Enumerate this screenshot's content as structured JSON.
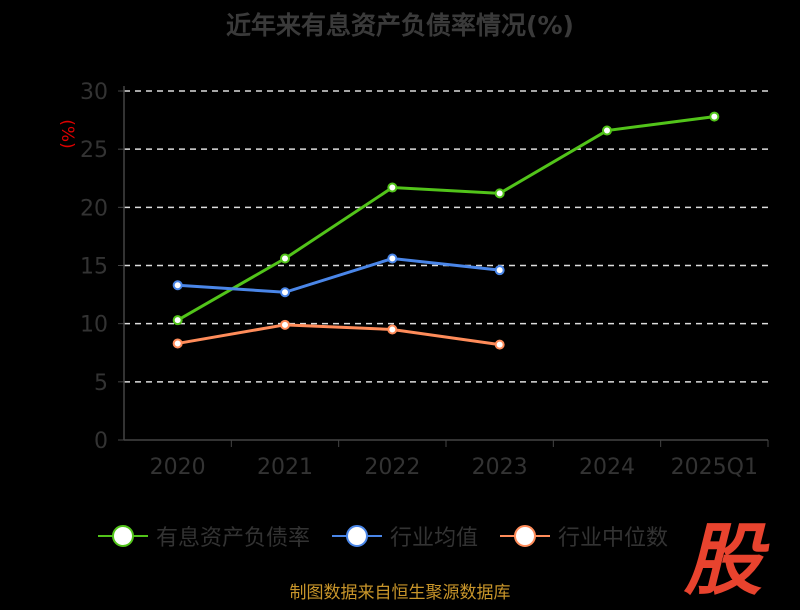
{
  "chart_data": {
    "type": "line",
    "title": "近年来有息资产负债率情况(%)",
    "ylabel": "(%)",
    "xlabel": "",
    "categories": [
      "2020",
      "2021",
      "2022",
      "2023",
      "2024",
      "2025Q1"
    ],
    "ylim": [
      0,
      30
    ],
    "yticks": [
      0,
      5,
      10,
      15,
      20,
      25,
      30
    ],
    "grid": true,
    "legend_position": "bottom",
    "series": [
      {
        "name": "有息资产负债率",
        "color": "#52c41a",
        "values": [
          10.3,
          15.6,
          21.7,
          21.2,
          26.6,
          27.8
        ]
      },
      {
        "name": "行业均值",
        "color": "#4a86e8",
        "values": [
          13.3,
          12.7,
          15.6,
          14.6,
          null,
          null
        ]
      },
      {
        "name": "行业中位数",
        "color": "#ff8c5a",
        "values": [
          8.3,
          9.9,
          9.5,
          8.2,
          null,
          null
        ]
      }
    ]
  },
  "source": "制图数据来自恒生聚源数据库",
  "logo": "股"
}
